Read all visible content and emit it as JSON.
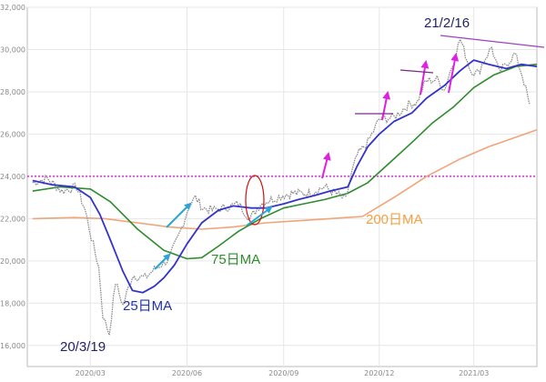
{
  "chart_data": {
    "type": "line",
    "title": "",
    "xlabel": "",
    "ylabel": "",
    "ylim": [
      15000,
      32000
    ],
    "xlim": [
      "2020-01-01",
      "2021-04-30"
    ],
    "y_ticks": [
      "16,000",
      "18,000",
      "20,000",
      "22,000",
      "24,000",
      "26,000",
      "28,000",
      "30,000",
      "32,000"
    ],
    "y_tick_values": [
      16000,
      18000,
      20000,
      22000,
      24000,
      26000,
      28000,
      30000,
      32000
    ],
    "x_ticks": [
      "2020/03",
      "2020/06",
      "2020/09",
      "2020/12",
      "2021/03"
    ],
    "x_tick_dates": [
      "2020-03-01",
      "2020-06-01",
      "2020-09-01",
      "2020-12-01",
      "2021-03-01"
    ],
    "grid": true,
    "reference_line": {
      "y": 24000,
      "color": "#e000e0",
      "style": "dotted"
    },
    "series": [
      {
        "name": "",
        "kind": "price",
        "color": "#8a8a8a",
        "x": [
          "2020-01-06",
          "2020-01-20",
          "2020-02-03",
          "2020-02-17",
          "2020-02-25",
          "2020-03-02",
          "2020-03-09",
          "2020-03-13",
          "2020-03-19",
          "2020-03-25",
          "2020-04-01",
          "2020-04-10",
          "2020-04-22",
          "2020-05-01",
          "2020-05-15",
          "2020-05-25",
          "2020-06-03",
          "2020-06-09",
          "2020-06-16",
          "2020-06-25",
          "2020-07-06",
          "2020-07-20",
          "2020-07-31",
          "2020-08-10",
          "2020-08-20",
          "2020-08-31",
          "2020-09-10",
          "2020-09-25",
          "2020-10-10",
          "2020-10-30",
          "2020-11-05",
          "2020-11-10",
          "2020-11-20",
          "2020-12-01",
          "2020-12-15",
          "2020-12-29",
          "2021-01-06",
          "2021-01-14",
          "2021-01-25",
          "2021-02-01",
          "2021-02-10",
          "2021-02-16",
          "2021-02-26",
          "2021-03-05",
          "2021-03-12",
          "2021-03-18",
          "2021-03-25",
          "2021-04-01",
          "2021-04-09",
          "2021-04-16",
          "2021-04-23"
        ],
        "values": [
          23700,
          23900,
          23300,
          23500,
          22400,
          21100,
          19700,
          17400,
          16550,
          19000,
          17900,
          19300,
          19200,
          19600,
          20100,
          21300,
          22600,
          23000,
          22500,
          22400,
          22500,
          22700,
          22000,
          22700,
          22900,
          23100,
          23200,
          23200,
          23500,
          22900,
          24200,
          25000,
          25600,
          26700,
          26800,
          27400,
          27500,
          28500,
          28600,
          28100,
          29500,
          30500,
          29000,
          28900,
          29600,
          30100,
          28900,
          29300,
          29800,
          28800,
          27400
        ]
      },
      {
        "name": "25日MA",
        "kind": "ma25",
        "color": "#3333cc",
        "x": [
          "2020-01-06",
          "2020-01-25",
          "2020-02-15",
          "2020-03-01",
          "2020-03-10",
          "2020-03-20",
          "2020-04-01",
          "2020-04-10",
          "2020-04-20",
          "2020-05-01",
          "2020-05-10",
          "2020-05-20",
          "2020-06-01",
          "2020-06-15",
          "2020-07-01",
          "2020-07-15",
          "2020-08-01",
          "2020-08-15",
          "2020-09-01",
          "2020-09-15",
          "2020-10-01",
          "2020-10-15",
          "2020-11-01",
          "2020-11-10",
          "2020-11-20",
          "2020-12-01",
          "2020-12-15",
          "2021-01-01",
          "2021-01-15",
          "2021-02-01",
          "2021-02-16",
          "2021-03-01",
          "2021-03-15",
          "2021-04-01",
          "2021-04-15",
          "2021-04-30"
        ],
        "values": [
          23800,
          23600,
          23500,
          23000,
          22200,
          21000,
          19500,
          18600,
          18500,
          18800,
          19200,
          19800,
          20800,
          21800,
          22400,
          22600,
          22500,
          22500,
          22700,
          22900,
          23100,
          23300,
          23500,
          24500,
          25400,
          26000,
          26600,
          27000,
          27700,
          28300,
          29000,
          29500,
          29300,
          29100,
          29300,
          29200
        ]
      },
      {
        "name": "75日MA",
        "kind": "ma75",
        "color": "#2e8b2e",
        "x": [
          "2020-01-06",
          "2020-02-01",
          "2020-03-01",
          "2020-03-20",
          "2020-04-15",
          "2020-05-10",
          "2020-06-01",
          "2020-06-15",
          "2020-07-01",
          "2020-07-20",
          "2020-08-10",
          "2020-09-01",
          "2020-09-20",
          "2020-10-10",
          "2020-11-01",
          "2020-11-20",
          "2020-12-10",
          "2021-01-01",
          "2021-01-20",
          "2021-02-10",
          "2021-03-01",
          "2021-03-20",
          "2021-04-10",
          "2021-04-30"
        ],
        "values": [
          23300,
          23500,
          23400,
          22800,
          21500,
          20500,
          20100,
          20150,
          20700,
          21400,
          22000,
          22500,
          22700,
          22900,
          23200,
          23700,
          24600,
          25600,
          26500,
          27300,
          28200,
          28800,
          29200,
          29300
        ]
      },
      {
        "name": "200日MA",
        "kind": "ma200",
        "color": "#f2a477",
        "x": [
          "2020-01-06",
          "2020-02-15",
          "2020-03-15",
          "2020-04-15",
          "2020-05-15",
          "2020-06-15",
          "2020-07-15",
          "2020-08-15",
          "2020-09-15",
          "2020-10-15",
          "2020-11-15",
          "2020-12-15",
          "2021-01-15",
          "2021-02-15",
          "2021-03-15",
          "2021-04-30"
        ],
        "values": [
          22000,
          22050,
          22000,
          21800,
          21600,
          21500,
          21600,
          21800,
          21900,
          22000,
          22100,
          23000,
          24000,
          24800,
          25400,
          26200
        ]
      }
    ],
    "annotations": [
      {
        "id": "label-ma200",
        "text": "200日MA",
        "color": "#f5a040"
      },
      {
        "id": "label-ma75",
        "text": "75日MA",
        "color": "#2e8b2e"
      },
      {
        "id": "label-ma25",
        "text": "25日MA",
        "color": "#2233aa"
      },
      {
        "id": "label-low",
        "text": "20/3/19",
        "color": "#222266"
      },
      {
        "id": "label-peak",
        "text": "21/2/16",
        "color": "#222266"
      }
    ]
  }
}
